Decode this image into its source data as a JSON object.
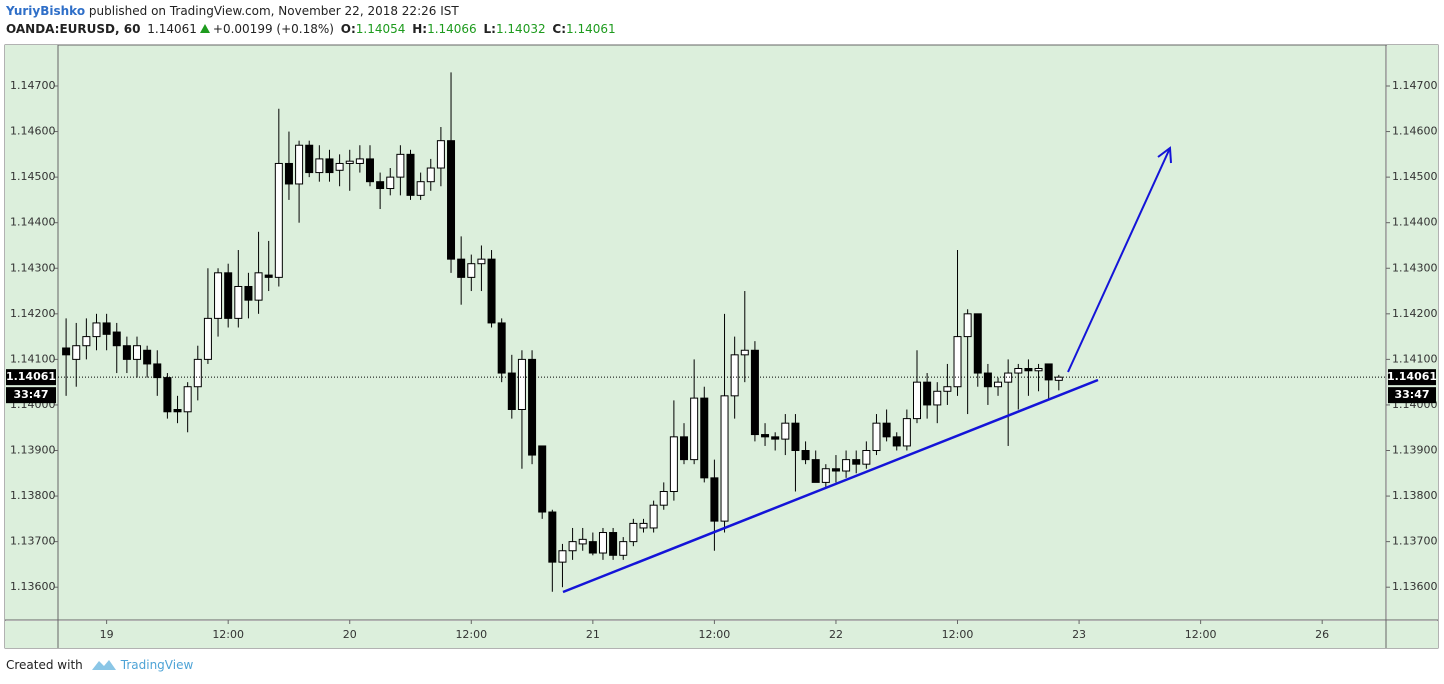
{
  "header": {
    "author": "YuriyBishko",
    "published": "published on TradingView.com, November 22, 2018 22:26 IST",
    "symbol": "OANDA:EURUSD, 60",
    "last": "1.14061",
    "change": "+0.00199 (+0.18%)",
    "open_label": "O:",
    "open": "1.14054",
    "high_label": "H:",
    "high": "1.14066",
    "low_label": "L:",
    "low": "1.14032",
    "close_label": "C:",
    "close": "1.14061"
  },
  "footer": {
    "created": "Created with",
    "brand": "TradingView"
  },
  "chart_data": {
    "type": "candlestick",
    "up_color": "#ffffff",
    "down_color": "#000000",
    "grid": false,
    "x": [
      -4,
      -3,
      -2,
      -1,
      0,
      1,
      2,
      3,
      4,
      5,
      6,
      7,
      8,
      9,
      10,
      11,
      12,
      13,
      14,
      15,
      16,
      17,
      18,
      19,
      20,
      21,
      22,
      23,
      24,
      25,
      26,
      27,
      28,
      29,
      30,
      31,
      32,
      33,
      34,
      35,
      36,
      37,
      38,
      39,
      40,
      41,
      42,
      43,
      44,
      45,
      46,
      47,
      48,
      49,
      50,
      51,
      52,
      53,
      54,
      55,
      56,
      57,
      58,
      59,
      60,
      61,
      62,
      63,
      64,
      65,
      66,
      67,
      68,
      69,
      70,
      71,
      72,
      73,
      74,
      75,
      76,
      77,
      78,
      79,
      80,
      81,
      82,
      83,
      84,
      85,
      86,
      87,
      88,
      89,
      90,
      91,
      92,
      93,
      94
    ],
    "open": [
      1.14125,
      1.141,
      1.1413,
      1.1415,
      1.1418,
      1.1416,
      1.1413,
      1.141,
      1.1412,
      1.1409,
      1.1406,
      1.1399,
      1.13985,
      1.1404,
      1.141,
      1.1419,
      1.1429,
      1.1419,
      1.1426,
      1.1423,
      1.14285,
      1.1428,
      1.1453,
      1.14485,
      1.1457,
      1.1451,
      1.1454,
      1.14515,
      1.1453,
      1.1453,
      1.1454,
      1.1449,
      1.14475,
      1.145,
      1.1455,
      1.1446,
      1.1449,
      1.1452,
      1.1458,
      1.1432,
      1.1428,
      1.1431,
      1.1432,
      1.1418,
      1.1407,
      1.1399,
      1.141,
      1.1391,
      1.13765,
      1.13655,
      1.1368,
      1.13695,
      1.137,
      1.13675,
      1.1372,
      1.1367,
      1.137,
      1.1373,
      1.1373,
      1.1378,
      1.1381,
      1.1393,
      1.1388,
      1.14015,
      1.1384,
      1.13745,
      1.1402,
      1.1411,
      1.1412,
      1.13935,
      1.1393,
      1.13925,
      1.1396,
      1.139,
      1.1388,
      1.1383,
      1.1386,
      1.13855,
      1.1388,
      1.1387,
      1.139,
      1.1396,
      1.1393,
      1.1391,
      1.1397,
      1.1405,
      1.14,
      1.1403,
      1.1404,
      1.1415,
      1.142,
      1.1407,
      1.1404,
      1.1405,
      1.1407,
      1.1408,
      1.14075,
      1.1409,
      1.14054
    ],
    "high": [
      1.1419,
      1.1418,
      1.1419,
      1.142,
      1.142,
      1.1418,
      1.1415,
      1.1415,
      1.1413,
      1.1412,
      1.1407,
      1.1402,
      1.1405,
      1.1413,
      1.143,
      1.143,
      1.1431,
      1.1434,
      1.1429,
      1.1438,
      1.1436,
      1.1465,
      1.146,
      1.1458,
      1.1458,
      1.1457,
      1.1456,
      1.1455,
      1.1456,
      1.1457,
      1.1457,
      1.1451,
      1.1452,
      1.1457,
      1.1456,
      1.1451,
      1.1454,
      1.1461,
      1.1473,
      1.1437,
      1.1433,
      1.1435,
      1.1434,
      1.1419,
      1.1411,
      1.1412,
      1.1412,
      1.1391,
      1.1377,
      1.13695,
      1.1373,
      1.1373,
      1.1372,
      1.1373,
      1.1373,
      1.1371,
      1.1375,
      1.1375,
      1.1379,
      1.1383,
      1.1401,
      1.1396,
      1.141,
      1.1404,
      1.1388,
      1.142,
      1.1415,
      1.1425,
      1.1414,
      1.1396,
      1.1394,
      1.1398,
      1.1398,
      1.1392,
      1.139,
      1.1387,
      1.1389,
      1.139,
      1.139,
      1.1392,
      1.1398,
      1.1399,
      1.1394,
      1.1399,
      1.1412,
      1.1407,
      1.1405,
      1.1409,
      1.1434,
      1.1421,
      1.142,
      1.1409,
      1.1406,
      1.141,
      1.1409,
      1.141,
      1.1409,
      1.1409,
      1.14066
    ],
    "low": [
      1.1402,
      1.1404,
      1.141,
      1.1412,
      1.1412,
      1.1407,
      1.1407,
      1.1406,
      1.1406,
      1.1402,
      1.1397,
      1.1396,
      1.1394,
      1.1401,
      1.1409,
      1.1415,
      1.1417,
      1.1417,
      1.1419,
      1.142,
      1.1425,
      1.1426,
      1.1445,
      1.144,
      1.145,
      1.1449,
      1.1449,
      1.1448,
      1.1447,
      1.1451,
      1.1448,
      1.1443,
      1.1446,
      1.1446,
      1.1445,
      1.1445,
      1.1447,
      1.1448,
      1.1429,
      1.1422,
      1.1425,
      1.1425,
      1.1417,
      1.1405,
      1.1397,
      1.1386,
      1.1387,
      1.1375,
      1.1359,
      1.136,
      1.1366,
      1.1368,
      1.1367,
      1.1366,
      1.1366,
      1.1366,
      1.1369,
      1.1372,
      1.1372,
      1.1377,
      1.1379,
      1.1387,
      1.1387,
      1.1383,
      1.1368,
      1.1372,
      1.1397,
      1.1405,
      1.1392,
      1.1391,
      1.139,
      1.1389,
      1.1381,
      1.1387,
      1.1383,
      1.1382,
      1.1383,
      1.1384,
      1.1385,
      1.1386,
      1.1389,
      1.1392,
      1.139,
      1.139,
      1.1396,
      1.1397,
      1.1396,
      1.14,
      1.1402,
      1.1398,
      1.1404,
      1.14,
      1.1402,
      1.1391,
      1.1399,
      1.1402,
      1.1403,
      1.1401,
      1.14032
    ],
    "close": [
      1.1411,
      1.1413,
      1.1415,
      1.1418,
      1.14155,
      1.1413,
      1.141,
      1.1413,
      1.1409,
      1.1406,
      1.13985,
      1.13985,
      1.1404,
      1.141,
      1.1419,
      1.1429,
      1.1419,
      1.1426,
      1.1423,
      1.1429,
      1.1428,
      1.1453,
      1.14485,
      1.1457,
      1.1451,
      1.1454,
      1.1451,
      1.1453,
      1.14535,
      1.1454,
      1.1449,
      1.14475,
      1.145,
      1.1455,
      1.1446,
      1.1449,
      1.1452,
      1.1458,
      1.1432,
      1.1428,
      1.1431,
      1.1432,
      1.1418,
      1.1407,
      1.1399,
      1.141,
      1.1389,
      1.13765,
      1.13655,
      1.1368,
      1.137,
      1.13705,
      1.13675,
      1.1372,
      1.1367,
      1.137,
      1.1374,
      1.1374,
      1.1378,
      1.1381,
      1.1393,
      1.1388,
      1.14015,
      1.1384,
      1.13745,
      1.1402,
      1.1411,
      1.1412,
      1.13935,
      1.1393,
      1.13925,
      1.1396,
      1.139,
      1.1388,
      1.1383,
      1.1386,
      1.13855,
      1.1388,
      1.1387,
      1.139,
      1.1396,
      1.1393,
      1.1391,
      1.1397,
      1.1405,
      1.14,
      1.1403,
      1.1404,
      1.1415,
      1.142,
      1.1407,
      1.1404,
      1.1405,
      1.1407,
      1.1408,
      1.14075,
      1.1408,
      1.14055,
      1.14061
    ],
    "xlim": [
      -4.8,
      126.3
    ],
    "xticks": [
      {
        "value": 0,
        "label": "19"
      },
      {
        "value": 12,
        "label": "12:00"
      },
      {
        "value": 24,
        "label": "20"
      },
      {
        "value": 36,
        "label": "12:00"
      },
      {
        "value": 48,
        "label": "21"
      },
      {
        "value": 60,
        "label": "12:00"
      },
      {
        "value": 72,
        "label": "22"
      },
      {
        "value": 84,
        "label": "12:00"
      },
      {
        "value": 96,
        "label": "23"
      },
      {
        "value": 108,
        "label": "12:00"
      },
      {
        "value": 120,
        "label": "26"
      }
    ],
    "ylim": [
      1.13528,
      1.1479
    ],
    "yticks": [
      {
        "value": 1.136,
        "label": "1.13600"
      },
      {
        "value": 1.137,
        "label": "1.13700"
      },
      {
        "value": 1.138,
        "label": "1.13800"
      },
      {
        "value": 1.139,
        "label": "1.13900"
      },
      {
        "value": 1.14,
        "label": "1.14000"
      },
      {
        "value": 1.141,
        "label": "1.14100"
      },
      {
        "value": 1.142,
        "label": "1.14200"
      },
      {
        "value": 1.143,
        "label": "1.14300"
      },
      {
        "value": 1.144,
        "label": "1.14400"
      },
      {
        "value": 1.145,
        "label": "1.14500"
      },
      {
        "value": 1.146,
        "label": "1.14600"
      },
      {
        "value": 1.147,
        "label": "1.14700"
      }
    ],
    "last_price": {
      "value": 1.14061,
      "label": "1.14061"
    },
    "countdown": "33:47"
  }
}
